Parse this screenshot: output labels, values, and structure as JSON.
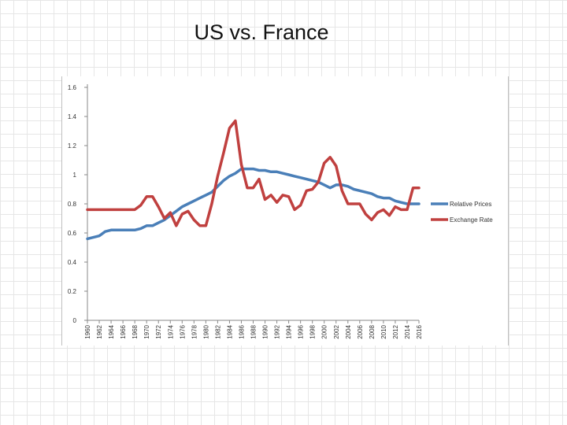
{
  "slide": {
    "title": "US vs. France"
  },
  "colors": {
    "relative_prices": "#4a7fb8",
    "exchange_rate": "#c0403f",
    "axis": "#888888",
    "text": "#333333"
  },
  "chart_data": {
    "type": "line",
    "title": "",
    "xlabel": "",
    "ylabel": "",
    "ylim": [
      0,
      1.6
    ],
    "yticks": [
      0,
      0.2,
      0.4,
      0.6,
      0.8,
      1,
      1.2,
      1.4,
      1.6
    ],
    "xlim": [
      1960,
      2016
    ],
    "xticks": [
      1960,
      1962,
      1964,
      1966,
      1968,
      1970,
      1972,
      1974,
      1976,
      1978,
      1980,
      1982,
      1984,
      1986,
      1988,
      1990,
      1992,
      1994,
      1996,
      1998,
      2000,
      2002,
      2004,
      2006,
      2008,
      2010,
      2012,
      2014,
      2016
    ],
    "grid": false,
    "legend": "right",
    "series": [
      {
        "name": "Relative Prices",
        "x": [
          1960,
          1961,
          1962,
          1963,
          1964,
          1965,
          1966,
          1967,
          1968,
          1969,
          1970,
          1971,
          1972,
          1973,
          1974,
          1975,
          1976,
          1977,
          1978,
          1979,
          1980,
          1981,
          1982,
          1983,
          1984,
          1985,
          1986,
          1987,
          1988,
          1989,
          1990,
          1991,
          1992,
          1993,
          1994,
          1995,
          1996,
          1997,
          1998,
          1999,
          2000,
          2001,
          2002,
          2003,
          2004,
          2005,
          2006,
          2007,
          2008,
          2009,
          2010,
          2011,
          2012,
          2013,
          2014,
          2015,
          2016
        ],
        "values": [
          0.56,
          0.57,
          0.58,
          0.61,
          0.62,
          0.62,
          0.62,
          0.62,
          0.62,
          0.63,
          0.65,
          0.65,
          0.67,
          0.69,
          0.72,
          0.75,
          0.78,
          0.8,
          0.82,
          0.84,
          0.86,
          0.88,
          0.92,
          0.96,
          0.99,
          1.01,
          1.04,
          1.04,
          1.04,
          1.03,
          1.03,
          1.02,
          1.02,
          1.01,
          1.0,
          0.99,
          0.98,
          0.97,
          0.96,
          0.95,
          0.93,
          0.91,
          0.93,
          0.93,
          0.92,
          0.9,
          0.89,
          0.88,
          0.87,
          0.85,
          0.84,
          0.84,
          0.82,
          0.81,
          0.8,
          0.8,
          0.8
        ]
      },
      {
        "name": "Exchange Rate",
        "x": [
          1960,
          1961,
          1962,
          1963,
          1964,
          1965,
          1966,
          1967,
          1968,
          1969,
          1970,
          1971,
          1972,
          1973,
          1974,
          1975,
          1976,
          1977,
          1978,
          1979,
          1980,
          1981,
          1982,
          1983,
          1984,
          1985,
          1986,
          1987,
          1988,
          1989,
          1990,
          1991,
          1992,
          1993,
          1994,
          1995,
          1996,
          1997,
          1998,
          1999,
          2000,
          2001,
          2002,
          2003,
          2004,
          2005,
          2006,
          2007,
          2008,
          2009,
          2010,
          2011,
          2012,
          2013,
          2014,
          2015,
          2016
        ],
        "values": [
          0.76,
          0.76,
          0.76,
          0.76,
          0.76,
          0.76,
          0.76,
          0.76,
          0.76,
          0.79,
          0.85,
          0.85,
          0.78,
          0.7,
          0.74,
          0.65,
          0.73,
          0.75,
          0.69,
          0.65,
          0.65,
          0.8,
          0.99,
          1.15,
          1.32,
          1.37,
          1.07,
          0.91,
          0.91,
          0.97,
          0.83,
          0.86,
          0.81,
          0.86,
          0.85,
          0.76,
          0.79,
          0.89,
          0.9,
          0.95,
          1.08,
          1.12,
          1.06,
          0.89,
          0.8,
          0.8,
          0.8,
          0.73,
          0.69,
          0.74,
          0.76,
          0.72,
          0.78,
          0.76,
          0.76,
          0.91,
          0.91
        ]
      }
    ]
  }
}
